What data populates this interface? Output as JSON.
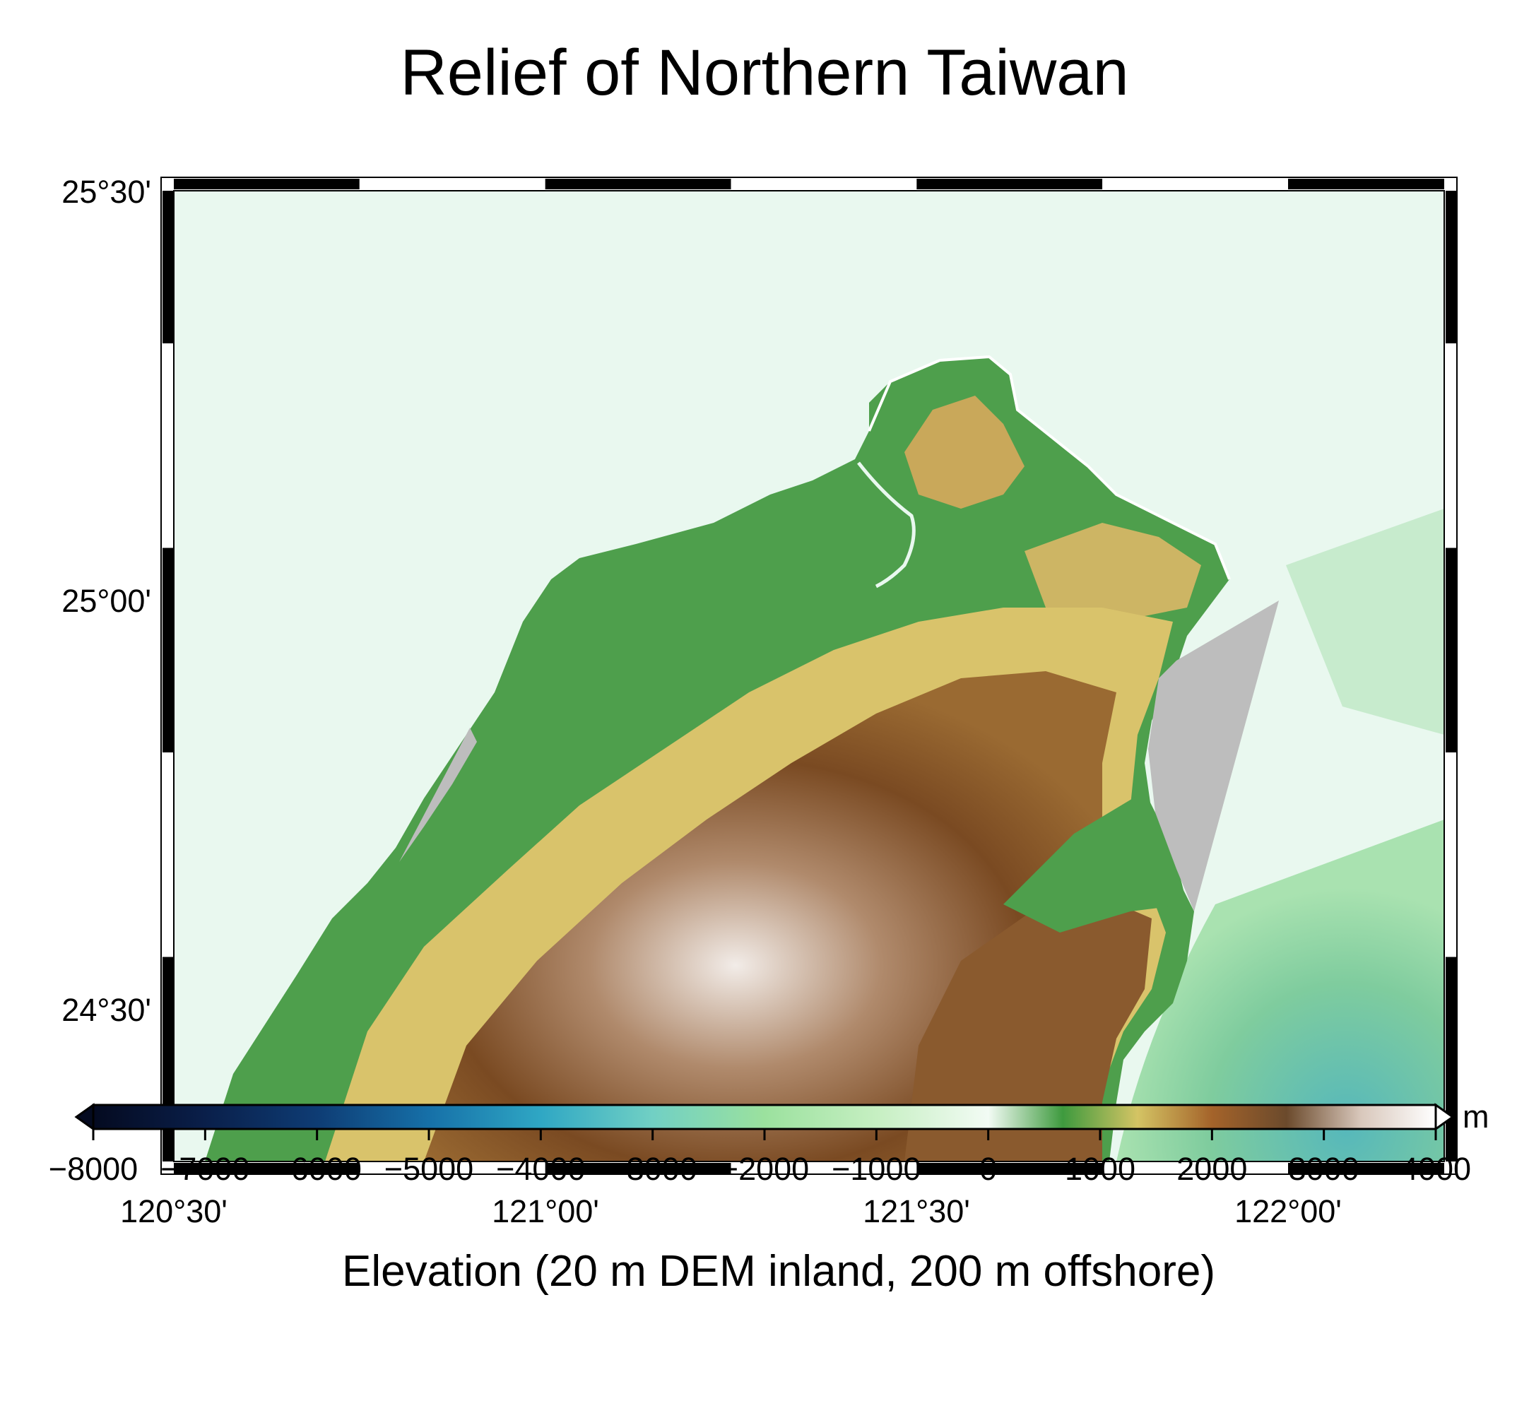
{
  "title": "Relief of Northern Taiwan",
  "map": {
    "lon_labels": [
      "120°30'",
      "121°00'",
      "121°30'",
      "122°00'"
    ],
    "lat_labels": [
      "25°30'",
      "25°00'",
      "24°30'"
    ],
    "colors": {
      "sea": "#e9f8ef",
      "lowland": "#4e9f4c",
      "hills": "#d9c36b",
      "mountains": "#8b5a2b",
      "peaks": "#efe7e2",
      "gap": "#bdbdbd",
      "deep_sea": "#5fbcb9"
    }
  },
  "colorbar": {
    "title": "Elevation (20 m DEM inland, 200 m offshore)",
    "unit": "m",
    "tick_labels": [
      "−8000",
      "−7000",
      "−6000",
      "−5000",
      "−4000",
      "−3000",
      "−2000",
      "−1000",
      "0",
      "1000",
      "2000",
      "3000",
      "4000"
    ],
    "range": [
      -8000,
      4000
    ],
    "colors": [
      "#040a20",
      "#0a1f4a",
      "#0e3c74",
      "#1670a8",
      "#2fa7c4",
      "#71d0c4",
      "#9be19e",
      "#c6efc2",
      "#f2fbf4",
      "#3e9a3e",
      "#d4c464",
      "#a4632a",
      "#6b4a2c",
      "#d9c8bc",
      "#ffffff"
    ]
  }
}
